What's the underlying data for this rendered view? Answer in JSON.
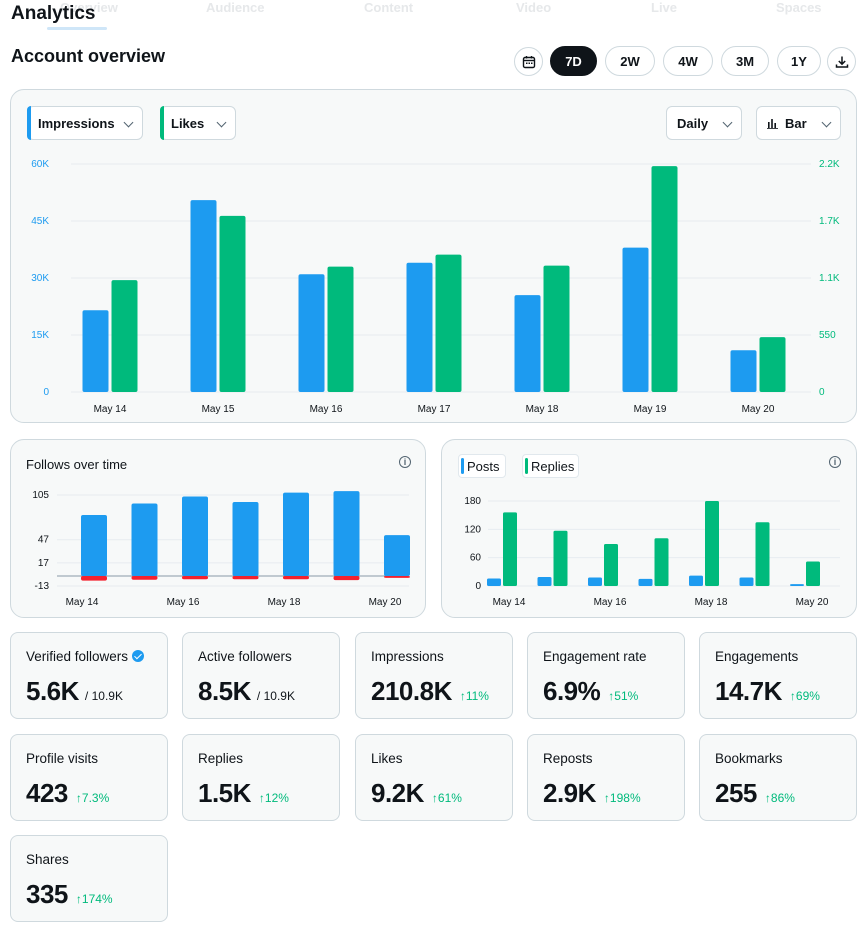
{
  "app_title": "Analytics",
  "tabs": [
    "Overview",
    "Audience",
    "Content",
    "Video",
    "Live",
    "Spaces"
  ],
  "overview_title": "Account overview",
  "ranges": [
    "7D",
    "2W",
    "4W",
    "3M",
    "1Y"
  ],
  "active_range": "7D",
  "main_chart": {
    "metric1": "Impressions",
    "metric2": "Likes",
    "interval": "Daily",
    "chart_type_label": "Bar",
    "metric1_color": "#1d9bf0",
    "metric2_color": "#00ba7c"
  },
  "follows_card": {
    "title": "Follows over time"
  },
  "posts_card": {
    "legend1": "Posts",
    "legend2": "Replies"
  },
  "chart_data": [
    {
      "type": "bar",
      "categories": [
        "May 14",
        "May 15",
        "May 16",
        "May 17",
        "May 18",
        "May 19",
        "May 20"
      ],
      "series": [
        {
          "name": "Impressions",
          "values": [
            21500,
            50500,
            31000,
            34000,
            25500,
            38000,
            11000
          ],
          "axis": "left"
        },
        {
          "name": "Likes",
          "values": [
            1080,
            1700,
            1210,
            1325,
            1220,
            2180,
            530
          ],
          "axis": "right"
        }
      ],
      "yticks_left": [
        "60K",
        "45K",
        "30K",
        "15K",
        "0"
      ],
      "yticks_right": [
        "2.2K",
        "1.7K",
        "1.1K",
        "550",
        "0"
      ],
      "ylim_left": [
        0,
        60000
      ],
      "ylim_right": [
        0,
        2200
      ],
      "grid": true
    },
    {
      "type": "bar",
      "title": "Follows over time",
      "categories": [
        "May 14",
        "May 15",
        "May 16",
        "May 17",
        "May 18",
        "May 19",
        "May 20"
      ],
      "xticks": [
        "May 14",
        "May 16",
        "May 18",
        "May 20"
      ],
      "series": [
        {
          "values": [
            79,
            94,
            103,
            96,
            108,
            110,
            53
          ]
        },
        {
          "values": [
            -10,
            -8,
            -7,
            -7,
            -7,
            -9,
            -4
          ]
        }
      ],
      "yticks": [
        "105",
        "47",
        "17",
        "-13"
      ],
      "ylim": [
        -15,
        110
      ],
      "grid": true
    },
    {
      "type": "bar",
      "categories": [
        "May 14",
        "May 15",
        "May 16",
        "May 17",
        "May 18",
        "May 19",
        "May 20"
      ],
      "xticks": [
        "May 14",
        "May 16",
        "May 18",
        "May 20"
      ],
      "series": [
        {
          "name": "Posts",
          "values": [
            16,
            19,
            18,
            15,
            22,
            18,
            4
          ]
        },
        {
          "name": "Replies",
          "values": [
            156,
            117,
            89,
            101,
            180,
            135,
            52
          ]
        }
      ],
      "yticks": [
        "180",
        "120",
        "60",
        "0"
      ],
      "ylim": [
        0,
        180
      ],
      "grid": true
    }
  ],
  "stats": [
    {
      "label": "Verified followers",
      "value": "5.6K",
      "sub": "/ 10.9K",
      "change": "",
      "verified": true
    },
    {
      "label": "Active followers",
      "value": "8.5K",
      "sub": "/ 10.9K",
      "change": ""
    },
    {
      "label": "Impressions",
      "value": "210.8K",
      "sub": "",
      "change": "11%"
    },
    {
      "label": "Engagement rate",
      "value": "6.9%",
      "sub": "",
      "change": "51%"
    },
    {
      "label": "Engagements",
      "value": "14.7K",
      "sub": "",
      "change": "69%"
    },
    {
      "label": "Profile visits",
      "value": "423",
      "sub": "",
      "change": "7.3%"
    },
    {
      "label": "Replies",
      "value": "1.5K",
      "sub": "",
      "change": "12%"
    },
    {
      "label": "Likes",
      "value": "9.2K",
      "sub": "",
      "change": "61%"
    },
    {
      "label": "Reposts",
      "value": "2.9K",
      "sub": "",
      "change": "198%"
    },
    {
      "label": "Bookmarks",
      "value": "255",
      "sub": "",
      "change": "86%"
    },
    {
      "label": "Shares",
      "value": "335",
      "sub": "",
      "change": "174%"
    }
  ]
}
